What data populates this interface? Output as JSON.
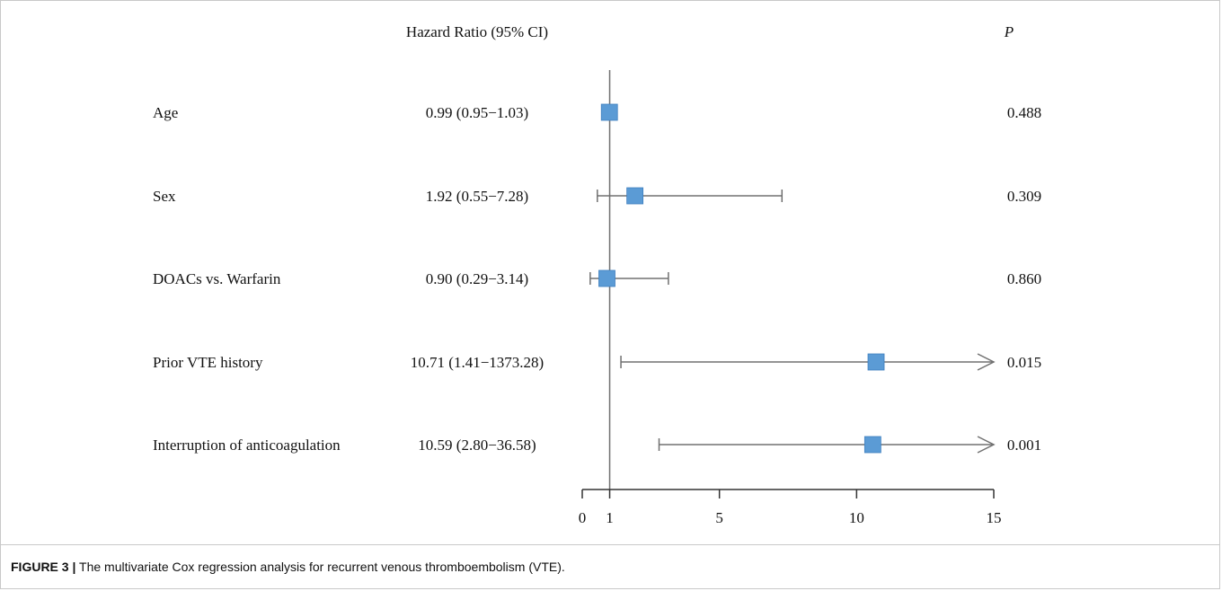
{
  "figure": {
    "caption_label": "FIGURE 3 |",
    "caption_text": "The multivariate Cox regression analysis for recurrent venous thromboembolism (VTE)."
  },
  "chart_data": {
    "type": "forest",
    "column_headers": {
      "estimate": "Hazard Ratio (95% CI)",
      "p": "P"
    },
    "reference_line": 1,
    "xlim": [
      0,
      15
    ],
    "xticks": [
      0,
      1,
      5,
      10,
      15
    ],
    "xtick_labels": [
      "0",
      "1",
      "5",
      "10",
      "15"
    ],
    "marker_color": "#5b9bd5",
    "line_color": "#707070",
    "rows": [
      {
        "label": "Age",
        "hr": 0.99,
        "lo": 0.95,
        "hi": 1.03,
        "ci_text": "0.99 (0.95−1.03)",
        "p": "0.488",
        "arrow": false
      },
      {
        "label": "Sex",
        "hr": 1.92,
        "lo": 0.55,
        "hi": 7.28,
        "ci_text": "1.92 (0.55−7.28)",
        "p": "0.309",
        "arrow": false
      },
      {
        "label": "DOACs vs. Warfarin",
        "hr": 0.9,
        "lo": 0.29,
        "hi": 3.14,
        "ci_text": "0.90 (0.29−3.14)",
        "p": "0.860",
        "arrow": false
      },
      {
        "label": "Prior VTE history",
        "hr": 10.71,
        "lo": 1.41,
        "hi": 1373.28,
        "ci_text": "10.71 (1.41−1373.28)",
        "p": "0.015",
        "arrow": true
      },
      {
        "label": "Interruption of anticoagulation",
        "hr": 10.59,
        "lo": 2.8,
        "hi": 36.58,
        "ci_text": "10.59 (2.80−36.58)",
        "p": "0.001",
        "arrow": true
      }
    ]
  }
}
